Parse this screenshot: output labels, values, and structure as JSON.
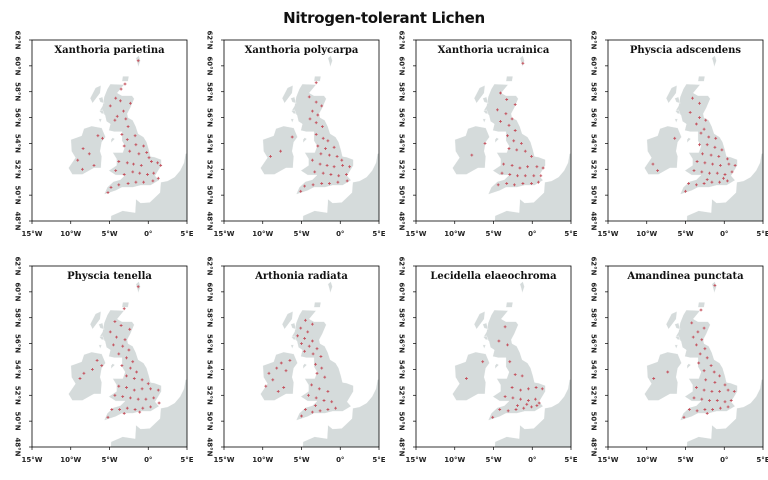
{
  "title": "Nitrogen-tolerant Lichen",
  "colors": {
    "land": "#d5dbdb",
    "record": "#c4505c",
    "frame": "#000000"
  },
  "map": {
    "lon_range": [
      -15,
      5
    ],
    "lat_range": [
      48,
      62
    ],
    "x_ticks": [
      {
        "lon": -15,
        "label": "15°W"
      },
      {
        "lon": -10,
        "label": "10°W"
      },
      {
        "lon": -5,
        "label": "5°W"
      },
      {
        "lon": 0,
        "label": "0°"
      },
      {
        "lon": 5,
        "label": "5°E"
      }
    ],
    "y_ticks": [
      {
        "lat": 48,
        "label": "48°N"
      },
      {
        "lat": 50,
        "label": "50°N"
      },
      {
        "lat": 52,
        "label": "52°N"
      },
      {
        "lat": 54,
        "label": "54°N"
      },
      {
        "lat": 56,
        "label": "56°N"
      },
      {
        "lat": 58,
        "label": "58°N"
      },
      {
        "lat": 60,
        "label": "60°N"
      },
      {
        "lat": 62,
        "label": "62°N"
      }
    ]
  },
  "panels": [
    {
      "species": "Xanthoria parietina",
      "records": [
        [
          -1.3,
          60.4
        ],
        [
          -3.0,
          58.6
        ],
        [
          -3.5,
          58.2
        ],
        [
          -4.2,
          57.5
        ],
        [
          -3.6,
          57.3
        ],
        [
          -2.3,
          57.1
        ],
        [
          -4.9,
          56.9
        ],
        [
          -3.2,
          56.5
        ],
        [
          -4.0,
          56.1
        ],
        [
          -2.9,
          55.9
        ],
        [
          -4.3,
          55.8
        ],
        [
          -2.6,
          55.3
        ],
        [
          -6.5,
          54.6
        ],
        [
          -5.9,
          54.4
        ],
        [
          -3.4,
          54.7
        ],
        [
          -2.7,
          54.3
        ],
        [
          -1.7,
          54.6
        ],
        [
          -3.1,
          53.8
        ],
        [
          -1.6,
          53.9
        ],
        [
          -0.6,
          53.8
        ],
        [
          -2.4,
          53.4
        ],
        [
          -1.2,
          53.2
        ],
        [
          -0.2,
          53.3
        ],
        [
          0.1,
          52.9
        ],
        [
          -8.4,
          53.6
        ],
        [
          -7.6,
          53.2
        ],
        [
          -9.1,
          52.7
        ],
        [
          -7.0,
          52.3
        ],
        [
          -8.5,
          52.0
        ],
        [
          -3.8,
          52.6
        ],
        [
          -2.7,
          52.5
        ],
        [
          -1.9,
          52.4
        ],
        [
          -0.9,
          52.3
        ],
        [
          0.4,
          52.6
        ],
        [
          1.2,
          52.5
        ],
        [
          1.6,
          52.3
        ],
        [
          -4.2,
          51.9
        ],
        [
          -3.1,
          51.6
        ],
        [
          -2.0,
          51.8
        ],
        [
          -1.1,
          51.7
        ],
        [
          -0.1,
          51.6
        ],
        [
          0.7,
          51.7
        ],
        [
          1.3,
          51.3
        ],
        [
          -4.8,
          50.6
        ],
        [
          -3.8,
          50.8
        ],
        [
          -2.6,
          50.9
        ],
        [
          -1.6,
          51.0
        ],
        [
          -0.6,
          51.0
        ],
        [
          0.6,
          51.1
        ],
        [
          -5.2,
          50.2
        ]
      ]
    },
    {
      "species": "Xanthoria polycarpa",
      "records": [
        [
          -3.1,
          58.7
        ],
        [
          -4.0,
          57.6
        ],
        [
          -3.1,
          57.2
        ],
        [
          -2.4,
          56.9
        ],
        [
          -3.6,
          56.5
        ],
        [
          -2.9,
          56.2
        ],
        [
          -3.9,
          55.9
        ],
        [
          -3.1,
          55.6
        ],
        [
          -2.3,
          55.3
        ],
        [
          -6.2,
          54.5
        ],
        [
          -3.1,
          54.7
        ],
        [
          -2.2,
          54.4
        ],
        [
          -1.6,
          54.2
        ],
        [
          -2.9,
          53.8
        ],
        [
          -1.9,
          53.6
        ],
        [
          -0.8,
          53.7
        ],
        [
          -2.5,
          53.2
        ],
        [
          -1.4,
          53.1
        ],
        [
          -0.4,
          53.0
        ],
        [
          0.2,
          52.7
        ],
        [
          -7.7,
          53.4
        ],
        [
          -9.0,
          53.0
        ],
        [
          -3.6,
          52.7
        ],
        [
          -2.6,
          52.4
        ],
        [
          -1.7,
          52.3
        ],
        [
          -0.8,
          52.2
        ],
        [
          0.3,
          52.3
        ],
        [
          1.2,
          52.2
        ],
        [
          -3.3,
          51.8
        ],
        [
          -2.2,
          51.7
        ],
        [
          -1.2,
          51.6
        ],
        [
          -0.2,
          51.5
        ],
        [
          0.8,
          51.6
        ],
        [
          -4.6,
          50.7
        ],
        [
          -3.5,
          50.8
        ],
        [
          -2.4,
          50.9
        ],
        [
          -1.4,
          50.9
        ],
        [
          -0.3,
          51.0
        ],
        [
          0.9,
          51.1
        ],
        [
          -5.1,
          50.3
        ]
      ]
    },
    {
      "species": "Xanthoria ucrainica",
      "records": [
        [
          -1.2,
          60.2
        ],
        [
          -4.1,
          57.9
        ],
        [
          -3.3,
          57.4
        ],
        [
          -2.2,
          57.0
        ],
        [
          -4.5,
          56.6
        ],
        [
          -3.4,
          56.3
        ],
        [
          -2.6,
          55.9
        ],
        [
          -4.1,
          55.7
        ],
        [
          -3.0,
          55.4
        ],
        [
          -2.2,
          55.0
        ],
        [
          -3.2,
          54.6
        ],
        [
          -2.4,
          54.2
        ],
        [
          -1.4,
          54.0
        ],
        [
          -3.0,
          53.6
        ],
        [
          -2.0,
          53.5
        ],
        [
          -0.9,
          53.4
        ],
        [
          -0.1,
          53.0
        ],
        [
          -6.1,
          54.0
        ],
        [
          -7.8,
          53.1
        ],
        [
          -3.7,
          52.4
        ],
        [
          -2.6,
          52.3
        ],
        [
          -1.6,
          52.1
        ],
        [
          -0.6,
          52.2
        ],
        [
          0.6,
          52.2
        ],
        [
          1.4,
          52.1
        ],
        [
          -3.9,
          51.7
        ],
        [
          -2.9,
          51.6
        ],
        [
          -1.9,
          51.5
        ],
        [
          -0.9,
          51.5
        ],
        [
          0.2,
          51.5
        ],
        [
          1.1,
          51.5
        ],
        [
          -4.4,
          50.8
        ],
        [
          -3.3,
          50.9
        ],
        [
          -2.3,
          50.8
        ],
        [
          -1.2,
          50.9
        ],
        [
          -0.1,
          50.9
        ],
        [
          0.8,
          51.0
        ]
      ]
    },
    {
      "species": "Physcia adscendens",
      "records": [
        [
          -4.1,
          57.5
        ],
        [
          -3.2,
          57.1
        ],
        [
          -4.4,
          56.4
        ],
        [
          -3.2,
          56.0
        ],
        [
          -2.4,
          55.8
        ],
        [
          -3.6,
          55.5
        ],
        [
          -2.6,
          55.1
        ],
        [
          -3.0,
          54.8
        ],
        [
          -2.0,
          54.5
        ],
        [
          -1.1,
          54.4
        ],
        [
          -3.2,
          53.9
        ],
        [
          -2.2,
          53.9
        ],
        [
          -1.2,
          53.7
        ],
        [
          -0.3,
          53.5
        ],
        [
          -2.8,
          53.2
        ],
        [
          -1.7,
          53.1
        ],
        [
          -0.7,
          53.0
        ],
        [
          0.4,
          52.8
        ],
        [
          -9.2,
          52.4
        ],
        [
          -8.6,
          51.9
        ],
        [
          -6.4,
          54.4
        ],
        [
          -3.5,
          52.6
        ],
        [
          -2.5,
          52.5
        ],
        [
          -1.5,
          52.4
        ],
        [
          -0.5,
          52.3
        ],
        [
          0.6,
          52.4
        ],
        [
          1.4,
          52.3
        ],
        [
          -3.9,
          51.9
        ],
        [
          -2.9,
          51.8
        ],
        [
          -1.9,
          51.7
        ],
        [
          -0.9,
          51.7
        ],
        [
          0.1,
          51.6
        ],
        [
          1.0,
          51.8
        ],
        [
          -4.6,
          50.9
        ],
        [
          -3.6,
          50.8
        ],
        [
          -2.6,
          50.9
        ],
        [
          -1.6,
          51.0
        ],
        [
          -0.6,
          51.0
        ],
        [
          0.4,
          51.1
        ],
        [
          -5.0,
          50.3
        ],
        [
          -2.2,
          51.2
        ],
        [
          -0.1,
          51.3
        ]
      ]
    },
    {
      "species": "Physcia tenella",
      "records": [
        [
          -1.3,
          60.4
        ],
        [
          -3.1,
          58.7
        ],
        [
          -4.3,
          57.7
        ],
        [
          -3.5,
          57.4
        ],
        [
          -2.4,
          57.1
        ],
        [
          -4.9,
          56.9
        ],
        [
          -4.1,
          56.5
        ],
        [
          -3.0,
          56.3
        ],
        [
          -4.5,
          55.9
        ],
        [
          -3.3,
          55.8
        ],
        [
          -2.5,
          55.5
        ],
        [
          -3.8,
          55.2
        ],
        [
          -2.8,
          54.9
        ],
        [
          -2.0,
          54.6
        ],
        [
          -6.6,
          54.7
        ],
        [
          -6.0,
          54.3
        ],
        [
          -7.2,
          54.0
        ],
        [
          -8.3,
          53.7
        ],
        [
          -8.8,
          53.3
        ],
        [
          -3.4,
          54.3
        ],
        [
          -2.3,
          54.1
        ],
        [
          -1.5,
          53.8
        ],
        [
          -2.8,
          53.5
        ],
        [
          -1.8,
          53.3
        ],
        [
          -0.8,
          53.2
        ],
        [
          0.0,
          52.9
        ],
        [
          -3.8,
          52.7
        ],
        [
          -2.8,
          52.6
        ],
        [
          -1.8,
          52.4
        ],
        [
          -0.8,
          52.5
        ],
        [
          0.3,
          52.5
        ],
        [
          1.3,
          52.4
        ],
        [
          -4.3,
          52.0
        ],
        [
          -3.3,
          51.9
        ],
        [
          -2.3,
          51.8
        ],
        [
          -1.3,
          51.7
        ],
        [
          -0.3,
          51.7
        ],
        [
          0.7,
          51.8
        ],
        [
          1.4,
          51.4
        ],
        [
          -4.7,
          50.9
        ],
        [
          -3.7,
          50.9
        ],
        [
          -2.7,
          51.0
        ],
        [
          -1.7,
          50.9
        ],
        [
          -0.7,
          51.0
        ],
        [
          0.3,
          51.1
        ],
        [
          -5.2,
          50.3
        ],
        [
          -3.1,
          50.6
        ],
        [
          -1.1,
          50.7
        ]
      ]
    },
    {
      "species": "Arthonia radiata",
      "records": [
        [
          -4.5,
          57.8
        ],
        [
          -3.6,
          57.5
        ],
        [
          -5.1,
          57.2
        ],
        [
          -4.2,
          56.9
        ],
        [
          -5.5,
          56.6
        ],
        [
          -4.6,
          56.4
        ],
        [
          -3.6,
          56.2
        ],
        [
          -5.0,
          56.0
        ],
        [
          -4.0,
          55.8
        ],
        [
          -3.0,
          55.6
        ],
        [
          -4.6,
          55.4
        ],
        [
          -3.5,
          55.2
        ],
        [
          -2.5,
          55.0
        ],
        [
          -6.5,
          54.7
        ],
        [
          -7.6,
          54.5
        ],
        [
          -8.2,
          54.1
        ],
        [
          -7.0,
          53.9
        ],
        [
          -9.2,
          53.7
        ],
        [
          -8.7,
          53.2
        ],
        [
          -9.6,
          52.7
        ],
        [
          -8.0,
          52.3
        ],
        [
          -7.3,
          52.6
        ],
        [
          -3.2,
          54.4
        ],
        [
          -2.4,
          54.1
        ],
        [
          -3.0,
          53.7
        ],
        [
          -2.0,
          53.4
        ],
        [
          -3.7,
          52.8
        ],
        [
          -2.7,
          52.5
        ],
        [
          -1.6,
          52.3
        ],
        [
          -4.1,
          52.0
        ],
        [
          -3.1,
          51.8
        ],
        [
          -2.1,
          51.6
        ],
        [
          -1.1,
          51.5
        ],
        [
          -4.5,
          50.9
        ],
        [
          -3.6,
          50.7
        ],
        [
          -2.6,
          50.8
        ],
        [
          -1.6,
          50.9
        ],
        [
          -0.6,
          51.0
        ],
        [
          -5.0,
          50.4
        ],
        [
          -3.2,
          51.2
        ]
      ]
    },
    {
      "species": "Lecidella elaeochroma",
      "records": [
        [
          -3.5,
          57.3
        ],
        [
          -4.3,
          56.2
        ],
        [
          -3.2,
          55.9
        ],
        [
          -2.9,
          54.6
        ],
        [
          -2.2,
          53.6
        ],
        [
          -1.3,
          53.5
        ],
        [
          -8.5,
          53.3
        ],
        [
          -6.4,
          54.6
        ],
        [
          -2.6,
          52.6
        ],
        [
          -1.5,
          52.4
        ],
        [
          -0.5,
          52.5
        ],
        [
          0.5,
          52.6
        ],
        [
          1.3,
          52.5
        ],
        [
          -3.5,
          51.9
        ],
        [
          -2.5,
          51.8
        ],
        [
          -1.5,
          51.7
        ],
        [
          -0.5,
          51.6
        ],
        [
          0.4,
          51.7
        ],
        [
          0.9,
          51.4
        ],
        [
          -4.2,
          50.9
        ],
        [
          -3.1,
          50.8
        ],
        [
          -2.1,
          50.9
        ],
        [
          -1.1,
          51.0
        ],
        [
          -0.1,
          51.1
        ],
        [
          0.6,
          51.2
        ],
        [
          -5.1,
          50.3
        ],
        [
          -0.7,
          51.3
        ],
        [
          -1.9,
          51.2
        ]
      ]
    },
    {
      "species": "Amandinea punctata",
      "records": [
        [
          -1.2,
          60.5
        ],
        [
          -3.0,
          58.6
        ],
        [
          -4.2,
          57.6
        ],
        [
          -2.6,
          57.2
        ],
        [
          -3.4,
          56.9
        ],
        [
          -4.0,
          56.5
        ],
        [
          -2.9,
          56.3
        ],
        [
          -3.6,
          55.9
        ],
        [
          -2.5,
          55.6
        ],
        [
          -3.1,
          55.2
        ],
        [
          -2.2,
          54.9
        ],
        [
          -3.3,
          54.5
        ],
        [
          -1.7,
          54.3
        ],
        [
          -2.6,
          53.9
        ],
        [
          -1.3,
          53.8
        ],
        [
          -0.6,
          53.5
        ],
        [
          -2.4,
          53.2
        ],
        [
          -1.2,
          53.0
        ],
        [
          0.1,
          52.8
        ],
        [
          -9.1,
          53.3
        ],
        [
          -7.3,
          53.8
        ],
        [
          -3.6,
          52.6
        ],
        [
          -2.6,
          52.4
        ],
        [
          -1.6,
          52.3
        ],
        [
          -0.6,
          52.3
        ],
        [
          0.5,
          52.4
        ],
        [
          1.3,
          52.3
        ],
        [
          -3.9,
          51.8
        ],
        [
          -2.9,
          51.7
        ],
        [
          -1.9,
          51.6
        ],
        [
          -0.9,
          51.6
        ],
        [
          0.1,
          51.5
        ],
        [
          0.9,
          51.6
        ],
        [
          -4.5,
          50.9
        ],
        [
          -3.5,
          50.8
        ],
        [
          -2.5,
          50.9
        ],
        [
          -1.5,
          50.9
        ],
        [
          -0.5,
          51.0
        ],
        [
          0.5,
          51.1
        ],
        [
          -5.2,
          50.3
        ],
        [
          -2.2,
          50.6
        ]
      ]
    }
  ]
}
